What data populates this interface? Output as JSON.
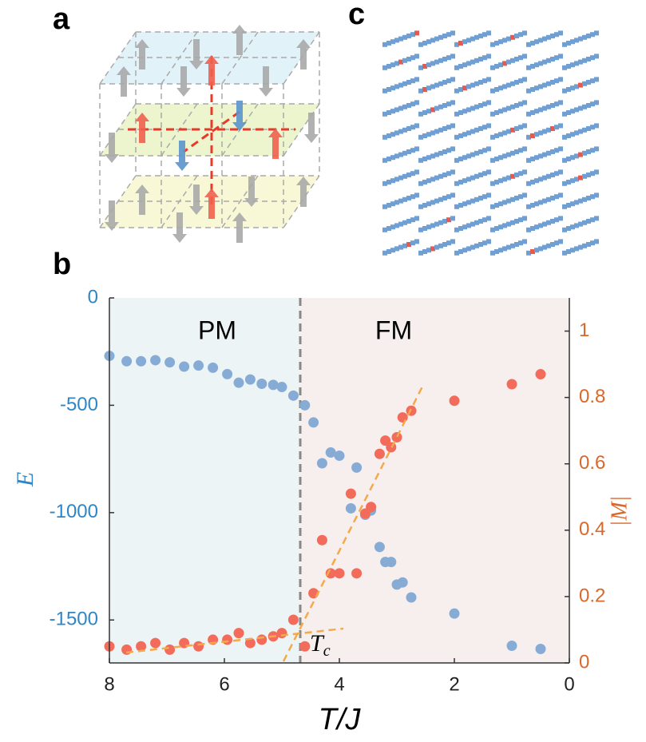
{
  "panel_labels": [
    "a",
    "c",
    "b"
  ],
  "chart_data": {
    "type": "scatter",
    "x_label": "T/J",
    "y_label": "E",
    "y2_label": "|M|",
    "annotations": [
      "PM",
      "FM"
    ],
    "tc_label": {
      "main": "T",
      "sub": "c"
    },
    "xlim": [
      8,
      0
    ],
    "xticks": [
      8,
      6,
      4,
      2,
      0
    ],
    "ylim": [
      -1700,
      0
    ],
    "yticks": [
      0,
      -500,
      -1000,
      -1500
    ],
    "y2lim": [
      0,
      1.1
    ],
    "y2ticks": [
      0,
      0.2,
      0.4,
      0.6,
      0.8,
      1
    ],
    "y_color": "#2f86c6",
    "y2_color": "#d9692b",
    "series": [
      {
        "color": "#86acd6",
        "x": [
          8.0,
          7.7,
          7.45,
          7.2,
          6.95,
          6.7,
          6.45,
          6.2,
          5.95,
          5.75,
          5.55,
          5.35,
          5.15,
          5.0,
          4.8,
          4.6,
          4.45,
          4.3,
          4.15,
          4.0,
          3.8,
          3.7,
          3.55,
          3.45,
          3.3,
          3.2,
          3.1,
          3.0,
          2.9,
          2.75,
          2.0,
          1.0,
          0.5
        ],
        "values": [
          -270,
          -295,
          -295,
          -290,
          -300,
          -320,
          -315,
          -325,
          -355,
          -395,
          -380,
          -400,
          -405,
          -415,
          -455,
          -500,
          -580,
          -770,
          -720,
          -735,
          -980,
          -790,
          -1010,
          -990,
          -1160,
          -1230,
          -1230,
          -1335,
          -1325,
          -1395,
          -1470,
          -1620,
          -1635
        ]
      },
      {
        "color": "#f26b5b",
        "axis": "y2",
        "x": [
          8.0,
          7.7,
          7.45,
          7.2,
          6.95,
          6.7,
          6.45,
          6.2,
          5.95,
          5.75,
          5.55,
          5.35,
          5.15,
          5.0,
          4.8,
          4.6,
          4.45,
          4.3,
          4.15,
          4.0,
          3.8,
          3.7,
          3.55,
          3.45,
          3.3,
          3.2,
          3.1,
          3.0,
          2.9,
          2.75,
          2.0,
          1.0,
          0.5
        ],
        "values": [
          0.05,
          0.04,
          0.05,
          0.06,
          0.04,
          0.06,
          0.05,
          0.07,
          0.07,
          0.09,
          0.06,
          0.07,
          0.08,
          0.09,
          0.13,
          0.05,
          0.21,
          0.37,
          0.27,
          0.27,
          0.51,
          0.27,
          0.45,
          0.47,
          0.63,
          0.67,
          0.65,
          0.68,
          0.74,
          0.76,
          0.79,
          0.84,
          0.87
        ]
      }
    ]
  }
}
